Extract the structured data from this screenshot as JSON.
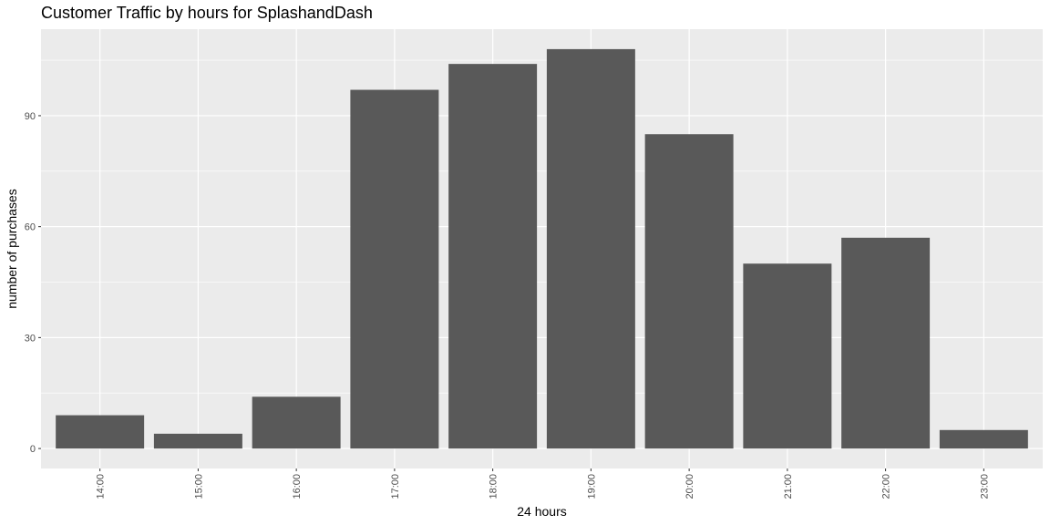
{
  "chart_data": {
    "type": "bar",
    "title": "Customer Traffic by hours for SplashandDash",
    "xlabel": "24 hours",
    "ylabel": "number of purchases",
    "categories": [
      "14:00",
      "15:00",
      "16:00",
      "17:00",
      "18:00",
      "19:00",
      "20:00",
      "21:00",
      "22:00",
      "23:00"
    ],
    "values": [
      9,
      4,
      14,
      97,
      104,
      108,
      85,
      50,
      57,
      5
    ],
    "yticks": [
      0,
      30,
      60,
      90
    ],
    "ylim": [
      -5.4,
      113.4
    ],
    "grid": true,
    "legend": "none",
    "colors": {
      "bar": "#595959",
      "panel": "#ebebeb",
      "grid": "#ffffff",
      "tick_text": "#4d4d4d",
      "tick_mark": "#333333"
    }
  }
}
